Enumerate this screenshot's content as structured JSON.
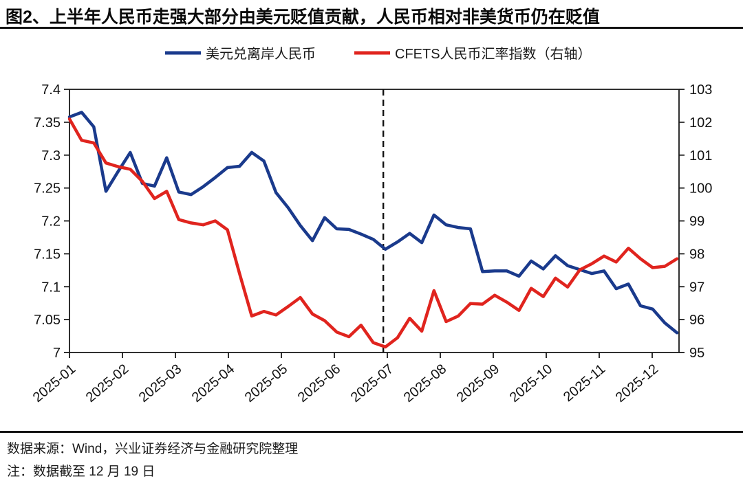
{
  "page": {
    "title": "图2、上半年人民币走强大部分由美元贬值贡献，人民币相对非美货币仍在贬值",
    "footer": {
      "source": "数据来源：Wind，兴业证券经济与金融研究院整理",
      "note": "注：数据截至 12 月 19 日"
    }
  },
  "chart_data": {
    "type": "line",
    "title": "图2、上半年人民币走强大部分由美元贬值贡献，人民币相对非美货币仍在贬值",
    "legend": [
      {
        "label": "美元兑离岸人民币",
        "color": "#1a3a8c",
        "axis": "left"
      },
      {
        "label": "CFETS人民币汇率指数（右轴）",
        "color": "#e0241e",
        "axis": "right"
      }
    ],
    "legend_position": "top-center",
    "grid": false,
    "x_tick_labels": [
      "2025-01",
      "2025-02",
      "2025-03",
      "2025-04",
      "2025-05",
      "2025-06",
      "2025-07",
      "2025-08",
      "2025-09",
      "2025-10",
      "2025-11",
      "2025-12"
    ],
    "left_axis": {
      "min": 7.0,
      "max": 7.4,
      "tick_values": [
        7,
        7.05,
        7.1,
        7.15,
        7.2,
        7.25,
        7.3,
        7.35,
        7.4
      ],
      "tick_labels": [
        "7",
        "7.05",
        "7.1",
        "7.15",
        "7.2",
        "7.25",
        "7.3",
        "7.35",
        "7.4"
      ]
    },
    "right_axis": {
      "min": 95,
      "max": 103,
      "tick_values": [
        95,
        96,
        97,
        98,
        99,
        100,
        101,
        102,
        103
      ],
      "tick_labels": [
        "95",
        "96",
        "97",
        "98",
        "99",
        "100",
        "101",
        "102",
        "103"
      ]
    },
    "dashed_vline": {
      "week_index": 26,
      "between_labels": [
        "2025-06",
        "2025-07"
      ]
    },
    "x_frequency": "weekly",
    "series": [
      {
        "name": "美元兑离岸人民币",
        "axis": "left",
        "color": "#1a3a8c",
        "values": [
          7.358,
          7.365,
          7.343,
          7.245,
          7.275,
          7.304,
          7.257,
          7.253,
          7.296,
          7.244,
          7.24,
          7.252,
          7.266,
          7.281,
          7.283,
          7.304,
          7.291,
          7.243,
          7.22,
          7.193,
          7.17,
          7.205,
          7.188,
          7.187,
          7.18,
          7.172,
          7.157,
          7.168,
          7.181,
          7.167,
          7.209,
          7.194,
          7.19,
          7.188,
          7.123,
          7.124,
          7.124,
          7.116,
          7.139,
          7.127,
          7.147,
          7.132,
          7.126,
          7.12,
          7.124,
          7.097,
          7.104,
          7.071,
          7.066,
          7.045,
          7.03
        ]
      },
      {
        "name": "CFETS人民币汇率指数（右轴）",
        "axis": "right",
        "color": "#e0241e",
        "values": [
          102.1,
          101.45,
          101.37,
          100.76,
          100.65,
          100.57,
          100.2,
          99.68,
          99.9,
          99.04,
          98.94,
          98.88,
          99.0,
          98.73,
          97.4,
          96.11,
          96.25,
          96.14,
          96.4,
          96.67,
          96.17,
          95.97,
          95.62,
          95.48,
          95.83,
          95.3,
          95.17,
          95.45,
          96.04,
          95.65,
          96.88,
          95.94,
          96.11,
          96.49,
          96.47,
          96.74,
          96.53,
          96.28,
          96.95,
          96.7,
          97.26,
          96.99,
          97.51,
          97.7,
          97.93,
          97.75,
          98.17,
          97.85,
          97.58,
          97.62,
          97.85
        ]
      }
    ]
  }
}
